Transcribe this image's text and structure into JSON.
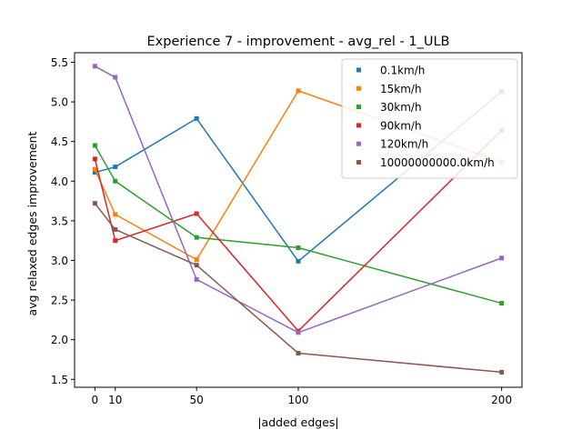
{
  "chart_data": {
    "type": "line",
    "title": "Experience 7 - improvement - avg_rel - 1_ULB",
    "xlabel": "|added edges|",
    "ylabel": "avg relaxed edges improvement",
    "x": [
      0,
      10,
      50,
      100,
      200
    ],
    "x_ticks": [
      0,
      10,
      50,
      100,
      200
    ],
    "y_ticks": [
      1.5,
      2.0,
      2.5,
      3.0,
      3.5,
      4.0,
      4.5,
      5.0,
      5.5
    ],
    "xlim": [
      -10,
      210
    ],
    "ylim": [
      1.4,
      5.62
    ],
    "legend_position": "top-right",
    "series": [
      {
        "name": "0.1km/h",
        "color": "#1f77b4",
        "values": [
          4.11,
          4.18,
          4.79,
          2.99,
          5.13
        ]
      },
      {
        "name": "15km/h",
        "color": "#ff7f0e",
        "values": [
          4.15,
          3.58,
          3.01,
          5.14,
          4.24
        ]
      },
      {
        "name": "30km/h",
        "color": "#2ca02c",
        "values": [
          4.45,
          4.0,
          3.29,
          3.16,
          2.46
        ]
      },
      {
        "name": "90km/h",
        "color": "#d62728",
        "values": [
          4.28,
          3.25,
          3.59,
          2.11,
          4.64
        ]
      },
      {
        "name": "120km/h",
        "color": "#9467bd",
        "values": [
          5.45,
          5.31,
          2.76,
          2.09,
          3.03
        ]
      },
      {
        "name": "10000000000.0km/h",
        "color": "#8c564b",
        "values": [
          3.72,
          3.39,
          2.94,
          1.83,
          1.59
        ]
      }
    ]
  }
}
